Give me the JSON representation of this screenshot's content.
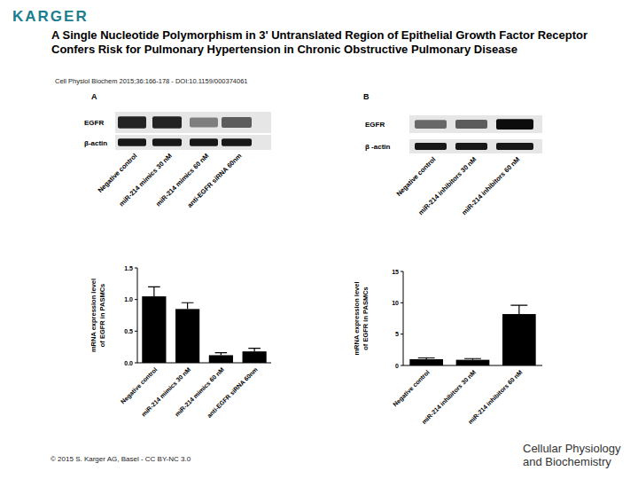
{
  "header": {
    "logo": "KARGER",
    "title": "A Single Nucleotide Polymorphism in 3' Untranslated Region of Epithelial Growth Factor Receptor Confers Risk for Pulmonary Hypertension in Chronic Obstructive Pulmonary Disease",
    "citation": "Cell Physiol Biochem 2015;36:166-178 - DOI:10.1159/000374061"
  },
  "panels": [
    {
      "label": "A",
      "blot": {
        "rows": [
          "EGFR",
          "β-actin"
        ],
        "lanes": [
          "Negative control",
          "miR-214 mimics 30 nM",
          "miR-214 mimics 60 nM",
          "anti-EGFR siRNA 60nm"
        ]
      }
    },
    {
      "label": "B",
      "blot": {
        "rows": [
          "EGFR",
          "β -actin"
        ],
        "lanes": [
          "Negative control",
          "miR-214 inhibitors 30 nM",
          "miR-214 inhibitors 60 nM"
        ]
      }
    }
  ],
  "chart_data": [
    {
      "type": "bar",
      "y_label": [
        "mRNA expression level",
        "of EGFR in  PASMCs"
      ],
      "categories": [
        "Negative control",
        "miR-214 mimics 30 nM",
        "miR-214 mimics 60 nM",
        "anti-EGFR siRNA 60nm"
      ],
      "values": [
        1.05,
        0.85,
        0.12,
        0.18
      ],
      "errors": [
        0.15,
        0.1,
        0.04,
        0.05
      ],
      "color": "#000000",
      "ylim": [
        0,
        1.5
      ],
      "yticks": [
        {
          "value": 0,
          "label": "0.0"
        },
        {
          "value": 0.5,
          "label": "0.5"
        },
        {
          "value": 1,
          "label": "1.0"
        },
        {
          "value": 1.5,
          "label": "1.5"
        }
      ]
    },
    {
      "type": "bar",
      "y_label": [
        "mRNA expression level",
        "of EGFR in  PASMCs"
      ],
      "categories": [
        "Negative control",
        "miR-214 inhibitors 30 nM",
        "miR-214 inhibitors 60 nM"
      ],
      "values": [
        1.0,
        0.9,
        8.2
      ],
      "errors": [
        0.2,
        0.2,
        1.4
      ],
      "color": "#000000",
      "ylim": [
        0,
        15
      ],
      "yticks": [
        0,
        5,
        10,
        15
      ]
    }
  ],
  "footer": {
    "copyright": "© 2015 S. Karger AG, Basel - CC BY-NC 3.0",
    "journal": [
      "Cellular Physiology",
      "and Biochemistry"
    ]
  }
}
